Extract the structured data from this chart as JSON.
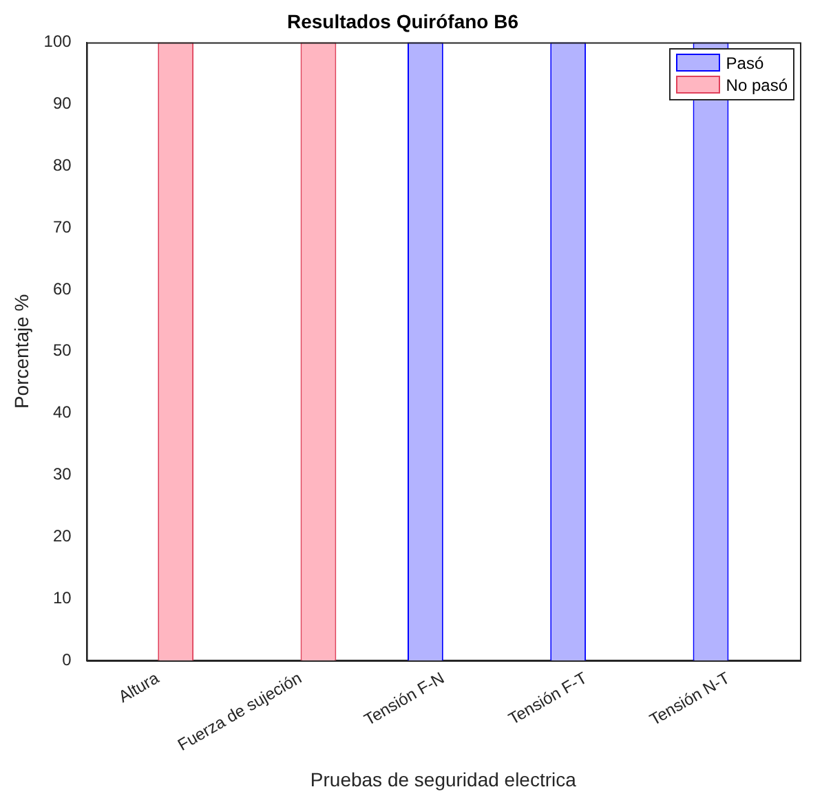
{
  "chart_data": {
    "type": "bar",
    "title": "Resultados Quirófano B6",
    "xlabel": "Pruebas de seguridad electrica",
    "ylabel": "Porcentaje %",
    "categories": [
      "Altura",
      "Fuerza de sujeción",
      "Tensión F-N",
      "Tensión F-T",
      "Tensión N-T"
    ],
    "series": [
      {
        "name": "Pasó",
        "color": "#b3b3ff",
        "values": [
          0,
          0,
          100,
          100,
          100
        ]
      },
      {
        "name": "No pasó",
        "color": "#ffb6c1",
        "values": [
          100,
          100,
          0,
          0,
          0
        ]
      }
    ],
    "ylim": [
      0,
      100
    ],
    "yticks": [
      0,
      10,
      20,
      30,
      40,
      50,
      60,
      70,
      80,
      90,
      100
    ],
    "grid": false,
    "legend": "top right"
  }
}
